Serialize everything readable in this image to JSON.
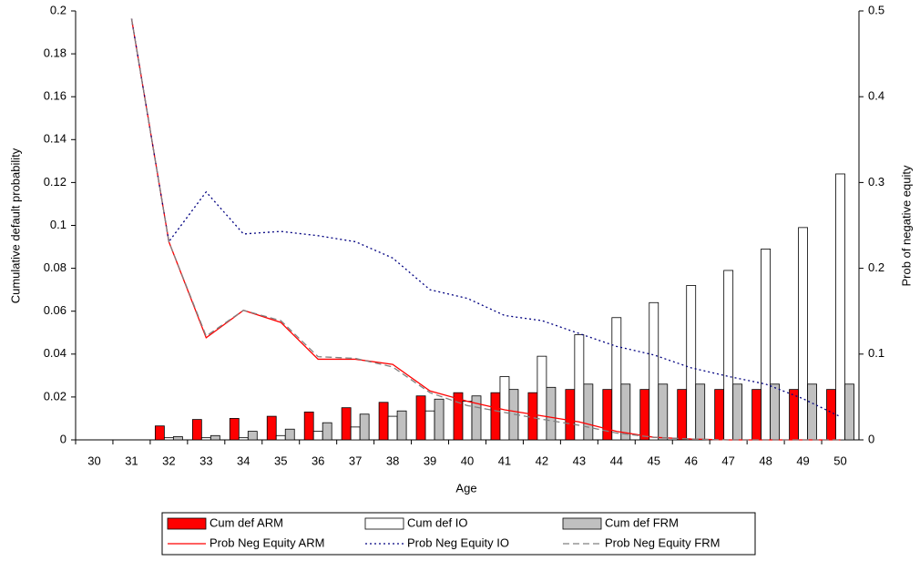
{
  "chart_data": {
    "type": "bar",
    "x_label": "Age",
    "y_label": "Cumulative default probability",
    "y2_label": "Prob of negative equity",
    "categories": [
      "30",
      "31",
      "32",
      "33",
      "34",
      "35",
      "36",
      "37",
      "38",
      "39",
      "40",
      "41",
      "42",
      "43",
      "44",
      "45",
      "46",
      "47",
      "48",
      "49",
      "50"
    ],
    "ylim": [
      0,
      0.2
    ],
    "yticks": [
      0,
      0.02,
      0.04,
      0.06,
      0.08,
      0.1,
      0.12,
      0.14,
      0.16,
      0.18,
      0.2
    ],
    "y2lim": [
      0,
      0.5
    ],
    "y2ticks": [
      0,
      0.1,
      0.2,
      0.3,
      0.4,
      0.5
    ],
    "series": [
      {
        "name": "Cum def ARM",
        "kind": "bar",
        "color": "#ff0000",
        "values": [
          0,
          0,
          0.0065,
          0.0095,
          0.01,
          0.011,
          0.013,
          0.015,
          0.0175,
          0.0205,
          0.022,
          0.022,
          0.022,
          0.0235,
          0.0235,
          0.0235,
          0.0235,
          0.0235,
          0.0235,
          0.0235,
          0.0235
        ]
      },
      {
        "name": "Cum def IO",
        "kind": "bar",
        "color": "#ffffff",
        "values": [
          0,
          0,
          0.001,
          0.001,
          0.001,
          0.002,
          0.004,
          0.006,
          0.011,
          0.0135,
          0.018,
          0.0295,
          0.039,
          0.049,
          0.057,
          0.064,
          0.072,
          0.079,
          0.089,
          0.099,
          0.124
        ]
      },
      {
        "name": "Cum def FRM",
        "kind": "bar",
        "color": "#c0c0c0",
        "values": [
          0,
          0,
          0.0015,
          0.002,
          0.004,
          0.005,
          0.008,
          0.012,
          0.0135,
          0.019,
          0.0205,
          0.0235,
          0.0245,
          0.026,
          0.026,
          0.026,
          0.026,
          0.026,
          0.026,
          0.026,
          0.026
        ]
      },
      {
        "name": "Prob Neg Equity ARM",
        "kind": "line",
        "axis": "y2",
        "style": "solid",
        "color": "#ff0000",
        "values": [
          null,
          0.491,
          0.231,
          0.119,
          0.151,
          0.137,
          0.094,
          0.094,
          0.088,
          0.057,
          0.045,
          0.035,
          0.028,
          0.021,
          0.01,
          0.003,
          0.001,
          0,
          0,
          0,
          0
        ]
      },
      {
        "name": "Prob Neg Equity IO",
        "kind": "line",
        "axis": "y2",
        "style": "dotted",
        "color": "#000080",
        "values": [
          null,
          0.491,
          0.231,
          0.289,
          0.24,
          0.243,
          0.238,
          0.231,
          0.212,
          0.175,
          0.165,
          0.145,
          0.139,
          0.124,
          0.109,
          0.099,
          0.084,
          0.074,
          0.065,
          0.048,
          0.027
        ]
      },
      {
        "name": "Prob Neg Equity FRM",
        "kind": "line",
        "axis": "y2",
        "style": "dashed",
        "color": "#808080",
        "values": [
          null,
          0.491,
          0.231,
          0.121,
          0.151,
          0.139,
          0.097,
          0.095,
          0.085,
          0.055,
          0.04,
          0.032,
          0.024,
          0.017,
          0.008,
          0.003,
          0.001,
          0,
          0,
          0,
          0
        ]
      }
    ]
  }
}
